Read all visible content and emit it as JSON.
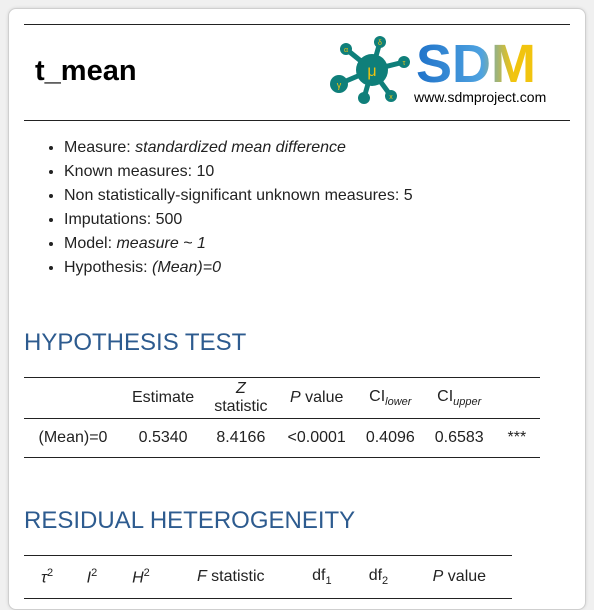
{
  "header": {
    "title": "t_mean",
    "logo_text": "SDM",
    "logo_url": "www.sdmproject.com",
    "logo_node_labels": [
      "μ",
      "α",
      "τ",
      "δ",
      "x",
      "γ"
    ]
  },
  "info": {
    "measure_label": "Measure: ",
    "measure_value": "standardized mean difference",
    "known_label": "Known measures: ",
    "known_value": "10",
    "unknown_label": "Non statistically-significant unknown measures: ",
    "unknown_value": "5",
    "imputations_label": "Imputations: ",
    "imputations_value": "500",
    "model_label": "Model: ",
    "model_value": "measure ~ 1",
    "hypothesis_label": "Hypothesis: ",
    "hypothesis_value": "(Mean)=0"
  },
  "hypothesis_test": {
    "heading": "HYPOTHESIS TEST",
    "columns": {
      "estimate": "Estimate",
      "z_italic": "Z",
      "z_rest": " statistic",
      "p_italic": "P",
      "p_rest": " value",
      "ci_lower_base": "CI",
      "ci_lower_sub": "lower",
      "ci_upper_base": "CI",
      "ci_upper_sub": "upper"
    },
    "row": {
      "label": "(Mean)=0",
      "estimate": "0.5340",
      "z": "8.4166",
      "p": "<0.0001",
      "ci_lower": "0.4096",
      "ci_upper": "0.6583",
      "sig": "***"
    }
  },
  "residual": {
    "heading": "RESIDUAL HETEROGENEITY",
    "columns": {
      "tau": "τ",
      "tau_sup": "2",
      "i": "I",
      "i_sup": "2",
      "h": "H",
      "h_sup": "2",
      "f_italic": "F",
      "f_rest": " statistic",
      "df1_base": "df",
      "df1_sub": "1",
      "df2_base": "df",
      "df2_sub": "2",
      "p_italic": "P",
      "p_rest": " value"
    }
  },
  "colors": {
    "heading": "#2d5b8f",
    "logo_teal": "#0f7f7a",
    "logo_blue": "#1f72c9",
    "logo_yellow": "#f1c40f"
  }
}
